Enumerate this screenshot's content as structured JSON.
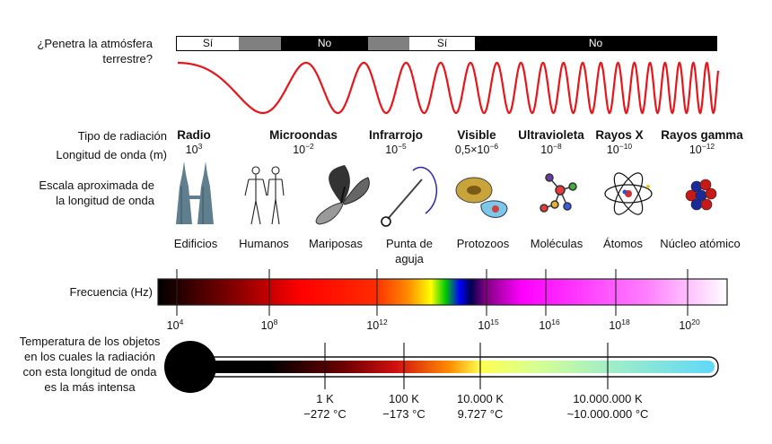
{
  "atmosphere": {
    "question": "¿Penetra la atmósfera terrestre?",
    "segments": [
      {
        "text": "Sí",
        "color": "#ffffff"
      },
      {
        "text": "",
        "color": "#808080"
      },
      {
        "text": "No",
        "color": "#000000"
      },
      {
        "text": "",
        "color": "#808080"
      },
      {
        "text": "Sí",
        "color": "#ffffff"
      },
      {
        "text": "No",
        "color": "#000000"
      }
    ]
  },
  "wave_color": "#e8151a",
  "row_labels": {
    "radiation_type": "Tipo de radiación",
    "wavelength": "Longitud de onda (m)",
    "scale": "Escala aproximada de la longitud de onda",
    "frequency": "Frecuencia (Hz)",
    "temperature": "Temperatura de los objetos en los cuales la radiación con esta longitud de onda es la más intensa"
  },
  "radiation_types": [
    {
      "name": "Radio",
      "wavelength_base": "10",
      "wavelength_exp": "3"
    },
    {
      "name": "Microondas",
      "wavelength_base": "10",
      "wavelength_exp": "−2"
    },
    {
      "name": "Infrarrojo",
      "wavelength_base": "10",
      "wavelength_exp": "−5"
    },
    {
      "name": "Visible",
      "wavelength_base": "0,5×10",
      "wavelength_exp": "−6"
    },
    {
      "name": "Ultravioleta",
      "wavelength_base": "10",
      "wavelength_exp": "−8"
    },
    {
      "name": "Rayos X",
      "wavelength_base": "10",
      "wavelength_exp": "−10"
    },
    {
      "name": "Rayos gamma",
      "wavelength_base": "10",
      "wavelength_exp": "−12"
    }
  ],
  "scale_objects": [
    {
      "label": "Edificios",
      "icon": "towers-icon"
    },
    {
      "label": "Humanos",
      "icon": "humans-icon"
    },
    {
      "label": "Mariposas",
      "icon": "butterfly-icon"
    },
    {
      "label": "Punta de aguja",
      "icon": "needle-icon"
    },
    {
      "label": "Protozoos",
      "icon": "protozoa-icon"
    },
    {
      "label": "Moléculas",
      "icon": "molecule-icon"
    },
    {
      "label": "Átomos",
      "icon": "atom-icon"
    },
    {
      "label": "Núcleo atómico",
      "icon": "nucleus-icon"
    }
  ],
  "frequency_ticks": [
    {
      "base": "10",
      "exp": "4"
    },
    {
      "base": "10",
      "exp": "8"
    },
    {
      "base": "10",
      "exp": "12"
    },
    {
      "base": "10",
      "exp": "15"
    },
    {
      "base": "10",
      "exp": "16"
    },
    {
      "base": "10",
      "exp": "18"
    },
    {
      "base": "10",
      "exp": "20"
    }
  ],
  "temperature_ticks": [
    {
      "kelvin": "1 K",
      "celsius": "−272 °C"
    },
    {
      "kelvin": "100 K",
      "celsius": "−173 °C"
    },
    {
      "kelvin": "10.000 K",
      "celsius": "9.727 °C"
    },
    {
      "kelvin": "10.000.000 K",
      "celsius": "~10.000.000 °C"
    }
  ]
}
